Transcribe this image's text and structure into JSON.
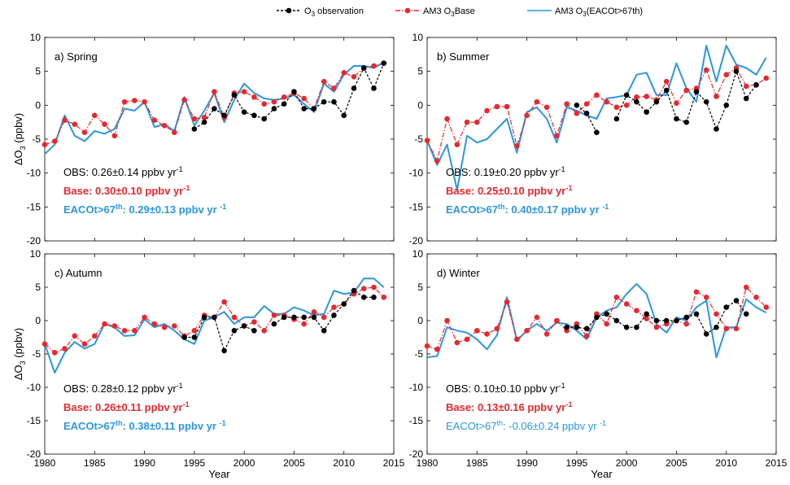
{
  "colors": {
    "obs": "#000000",
    "base": "#e8282e",
    "eaco": "#2a97e0"
  },
  "legend": [
    {
      "series": "obs",
      "prefix": "O",
      "sub": "3",
      "suffix": " observation"
    },
    {
      "series": "base",
      "prefix": "AM3 O",
      "sub": "3",
      "suffix": "Base"
    },
    {
      "series": "eaco",
      "prefix": "AM3 O",
      "sub": "3",
      "suffix": "(EACOt>67th)"
    }
  ],
  "axes": {
    "xlabel": "Year",
    "ylabel_prefix": "ΔO",
    "ylabel_sub": "3",
    "ylabel_suffix": " (ppbv)",
    "xlim": [
      1980,
      2015
    ],
    "ylim": [
      -20,
      10
    ],
    "xticks": [
      1980,
      1985,
      1990,
      1995,
      2000,
      2005,
      2010,
      2015
    ],
    "yticks": [
      -20,
      -15,
      -10,
      -5,
      0,
      5,
      10
    ]
  },
  "chart_data": [
    {
      "type": "line",
      "title": "a) Spring",
      "xlim": [
        1980,
        2015
      ],
      "ylim": [
        -20,
        10
      ],
      "stats": [
        {
          "series": "obs",
          "label": "OBS:",
          "sup": "",
          "value": "0.26±0.14 ppbv yr",
          "unit_sup": "-1",
          "bold": false
        },
        {
          "series": "base",
          "label": "Base:",
          "sup": "",
          "value": "0.30±0.10 ppbv yr",
          "unit_sup": "-1",
          "bold": true
        },
        {
          "series": "eaco",
          "label": "EACOt>67",
          "sup": "th",
          "value": ": 0.29±0.13 ppbv yr",
          "unit_sup": "-1",
          "bold": true
        }
      ],
      "series": [
        {
          "key": "obs",
          "x": [
            1995,
            1996,
            1997,
            1998,
            1999,
            2000,
            2001,
            2002,
            2003,
            2004,
            2005,
            2006,
            2007,
            2008,
            2009,
            2010,
            2011,
            2012,
            2013,
            2014
          ],
          "y": [
            -3.5,
            -2.5,
            -0.5,
            -1.5,
            1.5,
            -1.0,
            -1.5,
            -2.0,
            -0.5,
            0.2,
            2.0,
            -0.5,
            -0.5,
            0.5,
            0.5,
            -1.5,
            2.5,
            5.5,
            2.5,
            6.2
          ]
        },
        {
          "key": "base",
          "x": [
            1980,
            1981,
            1982,
            1983,
            1984,
            1985,
            1986,
            1987,
            1988,
            1989,
            1990,
            1991,
            1992,
            1993,
            1994,
            1995,
            1996,
            1997,
            1998,
            1999,
            2000,
            2001,
            2002,
            2003,
            2004,
            2005,
            2006,
            2007,
            2008,
            2009,
            2010,
            2011,
            2012,
            2013,
            2014
          ],
          "y": [
            -5.8,
            -5.3,
            -2.2,
            -2.8,
            -4.0,
            -1.5,
            -2.8,
            -4.5,
            0.5,
            0.7,
            0.5,
            -2.2,
            -3.0,
            -4.0,
            0.8,
            -2.0,
            -1.8,
            2.0,
            -1.8,
            1.8,
            2.0,
            1.2,
            0.2,
            0.5,
            1.2,
            1.8,
            1.0,
            -0.5,
            3.5,
            2.5,
            4.8,
            4.2,
            5.5,
            5.8,
            6.2
          ]
        },
        {
          "key": "eaco",
          "x": [
            1980,
            1981,
            1982,
            1983,
            1984,
            1985,
            1986,
            1987,
            1988,
            1989,
            1990,
            1991,
            1992,
            1993,
            1994,
            1995,
            1996,
            1997,
            1998,
            1999,
            2000,
            2001,
            2002,
            2003,
            2004,
            2005,
            2006,
            2007,
            2008,
            2009,
            2010,
            2011,
            2012,
            2013,
            2014
          ],
          "y": [
            -7.2,
            -5.8,
            -1.5,
            -4.5,
            -5.3,
            -3.8,
            -4.2,
            -3.5,
            -0.5,
            -0.8,
            0.5,
            -3.2,
            -2.8,
            -3.8,
            1.2,
            -3.0,
            -0.8,
            1.8,
            -2.5,
            0.8,
            3.2,
            1.8,
            1.0,
            0.8,
            1.0,
            1.5,
            0.2,
            -1.0,
            3.2,
            2.0,
            4.5,
            5.8,
            5.8,
            5.5,
            6.3
          ]
        }
      ]
    },
    {
      "type": "line",
      "title": "b) Summer",
      "xlim": [
        1980,
        2015
      ],
      "ylim": [
        -20,
        10
      ],
      "stats": [
        {
          "series": "obs",
          "label": "OBS:",
          "sup": "",
          "value": "0.19±0.20 ppbv yr",
          "unit_sup": "-1",
          "bold": false
        },
        {
          "series": "base",
          "label": "Base:",
          "sup": "",
          "value": "0.25±0.10 ppbv yr",
          "unit_sup": "-1",
          "bold": true
        },
        {
          "series": "eaco",
          "label": "EACOt>67",
          "sup": "th",
          "value": ": 0.40±0.17 ppbv yr",
          "unit_sup": "-1",
          "bold": true
        }
      ],
      "series": [
        {
          "key": "obs",
          "x": [
            1995,
            1996,
            1997
          ],
          "y": [
            0.0,
            -1.2,
            -4.0
          ]
        },
        {
          "key": "obs",
          "x": [
            1999,
            2000,
            2001,
            2002,
            2003,
            2004,
            2005,
            2006,
            2007,
            2008,
            2009,
            2010,
            2011,
            2012,
            2013
          ],
          "y": [
            -2.0,
            1.5,
            0.5,
            -1.0,
            0.5,
            2.2,
            -2.0,
            -2.5,
            2.0,
            0.5,
            -3.5,
            0.0,
            5.0,
            1.0,
            3.0
          ]
        },
        {
          "key": "base",
          "x": [
            1980,
            1981,
            1982,
            1983,
            1984,
            1985,
            1986,
            1987,
            1988,
            1989,
            1990,
            1991,
            1992,
            1993,
            1994,
            1995,
            1996,
            1997,
            1998,
            1999,
            2000,
            2001,
            2002,
            2003,
            2004,
            2005,
            2006,
            2007,
            2008,
            2009,
            2010,
            2011,
            2012,
            2013,
            2014
          ],
          "y": [
            -5.2,
            -8.2,
            -2.0,
            -5.8,
            -2.5,
            -2.5,
            -0.8,
            -0.2,
            -0.2,
            -6.0,
            -1.5,
            0.5,
            -0.3,
            -4.5,
            0.2,
            -1.2,
            0.2,
            1.5,
            0.5,
            -0.3,
            0.0,
            1.2,
            1.3,
            0.8,
            3.5,
            0.3,
            2.2,
            2.5,
            5.2,
            1.3,
            4.5,
            5.5,
            2.8,
            3.0,
            4.0
          ]
        },
        {
          "key": "eaco",
          "x": [
            1980,
            1981,
            1982,
            1983,
            1984,
            1985,
            1986,
            1987,
            1988,
            1989,
            1990,
            1991,
            1992,
            1993,
            1994,
            1995,
            1996,
            1997,
            1998,
            1999,
            2000,
            2001,
            2002,
            2003,
            2004,
            2005,
            2006,
            2007,
            2008,
            2009,
            2010,
            2011,
            2012,
            2013,
            2014
          ],
          "y": [
            -5.2,
            -8.8,
            -5.8,
            -12.5,
            -4.5,
            -5.5,
            -5.0,
            -3.5,
            -2.0,
            -7.0,
            -1.0,
            -0.3,
            -2.0,
            -5.5,
            -0.3,
            -0.8,
            -1.5,
            -2.0,
            1.0,
            1.2,
            1.5,
            4.5,
            4.8,
            1.5,
            1.5,
            6.2,
            2.5,
            0.5,
            8.8,
            3.5,
            8.8,
            6.0,
            5.5,
            4.5,
            7.0
          ]
        }
      ]
    },
    {
      "type": "line",
      "title": "c) Autumn",
      "xlim": [
        1980,
        2015
      ],
      "ylim": [
        -20,
        10
      ],
      "stats": [
        {
          "series": "obs",
          "label": "OBS:",
          "sup": "",
          "value": "0.28±0.12 ppbv yr",
          "unit_sup": "-1",
          "bold": false
        },
        {
          "series": "base",
          "label": "Base:",
          "sup": "",
          "value": "0.26±0.11 ppbv yr",
          "unit_sup": "-1",
          "bold": true
        },
        {
          "series": "eaco",
          "label": "EACOt>67",
          "sup": "th",
          "value": ": 0.38±0.11 ppbv yr",
          "unit_sup": "-1",
          "bold": true
        }
      ],
      "series": [
        {
          "key": "obs",
          "x": [
            1994,
            1995,
            1996,
            1997,
            1998,
            1999,
            2000,
            2001
          ],
          "y": [
            -2.5,
            -2.5,
            0.5,
            0.5,
            -4.5,
            -1.5,
            -0.8,
            -1.5
          ]
        },
        {
          "key": "obs",
          "x": [
            2003,
            2004,
            2005,
            2006,
            2007,
            2008,
            2009,
            2010,
            2011,
            2012,
            2013
          ],
          "y": [
            -0.5,
            0.5,
            0.5,
            0.5,
            0.5,
            -1.5,
            0.8,
            2.5,
            4.5,
            3.5,
            3.5
          ]
        },
        {
          "key": "base",
          "x": [
            1980,
            1981,
            1982,
            1983,
            1984,
            1985,
            1986,
            1987,
            1988,
            1989,
            1990,
            1991,
            1992,
            1993,
            1994,
            1995,
            1996,
            1997,
            1998,
            1999,
            2000,
            2001,
            2002,
            2003,
            2004,
            2005,
            2006,
            2007,
            2008,
            2009,
            2010,
            2011,
            2012,
            2013,
            2014
          ],
          "y": [
            -3.5,
            -4.8,
            -4.2,
            -2.3,
            -3.5,
            -2.3,
            -0.5,
            -0.8,
            -1.5,
            -1.5,
            0.5,
            -0.5,
            -1.0,
            -0.8,
            -2.3,
            -1.5,
            0.8,
            0.5,
            2.8,
            0.5,
            -0.8,
            -0.2,
            -1.5,
            0.8,
            0.8,
            0.2,
            -0.5,
            1.3,
            0.5,
            2.0,
            2.5,
            4.0,
            4.8,
            5.0,
            3.5
          ]
        },
        {
          "key": "eaco",
          "x": [
            1980,
            1981,
            1982,
            1983,
            1984,
            1985,
            1986,
            1987,
            1988,
            1989,
            1990,
            1991,
            1992,
            1993,
            1994,
            1995,
            1996,
            1997,
            1998,
            1999,
            2000,
            2001,
            2002,
            2003,
            2004,
            2005,
            2006,
            2007,
            2008,
            2009,
            2010,
            2011,
            2012,
            2013,
            2014
          ],
          "y": [
            -3.5,
            -7.8,
            -4.8,
            -3.2,
            -4.2,
            -3.5,
            -0.5,
            -1.0,
            -2.3,
            -2.2,
            0.2,
            -1.0,
            -0.5,
            -1.5,
            -2.8,
            -3.5,
            0.0,
            0.5,
            1.3,
            -0.5,
            0.5,
            0.5,
            2.2,
            1.0,
            1.0,
            2.0,
            1.5,
            0.8,
            1.0,
            4.5,
            4.0,
            4.2,
            6.3,
            6.3,
            5.0
          ]
        }
      ]
    },
    {
      "type": "line",
      "title": "d) Winter",
      "xlim": [
        1980,
        2015
      ],
      "ylim": [
        -20,
        10
      ],
      "stats": [
        {
          "series": "obs",
          "label": "OBS:",
          "sup": "",
          "value": "0.10±0.10 ppbv yr",
          "unit_sup": "-1",
          "bold": false
        },
        {
          "series": "base",
          "label": "Base:",
          "sup": "",
          "value": "0.13±0.16 ppbv yr",
          "unit_sup": "-1",
          "bold": true
        },
        {
          "series": "eaco",
          "label": "EACOt>67",
          "sup": "th",
          "value": ": -0.06±0.24 ppbv yr",
          "unit_sup": "-1",
          "bold": false
        }
      ],
      "series": [
        {
          "key": "obs",
          "x": [
            1994,
            1995,
            1996,
            1997,
            1998,
            1999,
            2000,
            2001,
            2002,
            2003,
            2004,
            2005,
            2006,
            2007,
            2008,
            2009,
            2010,
            2011,
            2012
          ],
          "y": [
            -1.0,
            -1.0,
            -1.2,
            0.5,
            1.0,
            0.0,
            -1.0,
            -1.0,
            1.0,
            0.0,
            0.0,
            0.0,
            0.5,
            1.0,
            -2.0,
            -1.0,
            2.0,
            3.0,
            1.0
          ]
        },
        {
          "key": "base",
          "x": [
            1980,
            1981,
            1982,
            1983,
            1984,
            1985,
            1986,
            1987,
            1988,
            1989,
            1990,
            1991,
            1992,
            1993,
            1994,
            1995,
            1996,
            1997,
            1998,
            1999,
            2000,
            2001,
            2002,
            2003,
            2004,
            2005,
            2006,
            2007,
            2008,
            2009,
            2010,
            2011,
            2012,
            2013,
            2014
          ],
          "y": [
            -3.8,
            -4.3,
            0.0,
            -3.3,
            -2.8,
            -1.5,
            -2.0,
            -1.2,
            2.8,
            -2.8,
            -1.5,
            0.5,
            -2.0,
            0.0,
            -1.5,
            -0.5,
            -2.3,
            1.0,
            -0.5,
            3.5,
            2.5,
            1.5,
            0.3,
            -1.0,
            -0.5,
            0.0,
            -0.5,
            4.3,
            3.5,
            1.0,
            -1.2,
            -1.2,
            5.0,
            3.5,
            2.0
          ]
        },
        {
          "key": "eaco",
          "x": [
            1980,
            1981,
            1982,
            1983,
            1984,
            1985,
            1986,
            1987,
            1988,
            1989,
            1990,
            1991,
            1992,
            1993,
            1994,
            1995,
            1996,
            1997,
            1998,
            1999,
            2000,
            2001,
            2002,
            2003,
            2004,
            2005,
            2006,
            2007,
            2008,
            2009,
            2010,
            2011,
            2012,
            2013,
            2014
          ],
          "y": [
            -5.5,
            -5.3,
            -1.0,
            -1.5,
            -1.8,
            -2.8,
            -4.3,
            -2.2,
            3.5,
            -3.0,
            -1.5,
            -0.5,
            -1.5,
            -0.3,
            -0.5,
            -1.5,
            -2.8,
            0.5,
            1.5,
            2.0,
            4.0,
            5.5,
            4.0,
            -0.5,
            -1.8,
            0.5,
            0.0,
            2.0,
            3.0,
            -5.5,
            -1.0,
            -1.0,
            3.2,
            2.0,
            1.2
          ]
        }
      ]
    }
  ]
}
